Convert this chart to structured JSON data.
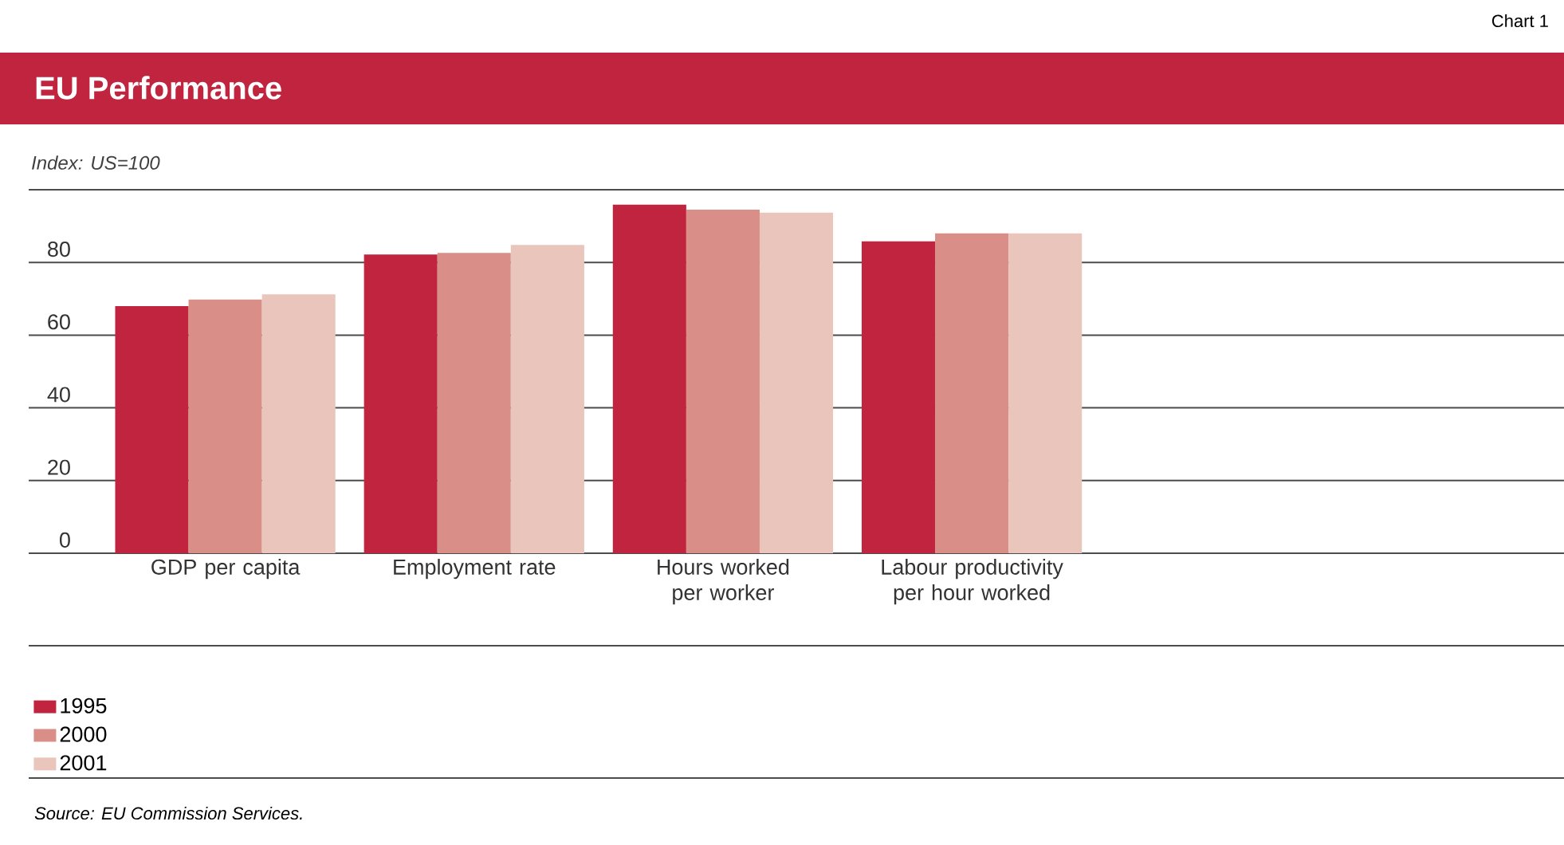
{
  "chart_data": {
    "type": "bar",
    "title": "EU Performance",
    "ylabel": "Index: US=100",
    "annotations": [
      "Chart 1",
      "Source: EU Commission Services."
    ],
    "categories": [
      "GDP per capita",
      "Employment rate",
      "Hours worked per worker",
      "Labour productivity per hour worked"
    ],
    "series": [
      {
        "name": "1995",
        "color": "#c0243f",
        "values": [
          68,
          82.2,
          95.9,
          85.8
        ]
      },
      {
        "name": "2000",
        "color": "#d98e87",
        "values": [
          69.8,
          82.6,
          94.5,
          88
        ]
      },
      {
        "name": "2001",
        "color": "#eac5bc",
        "values": [
          71.2,
          84.8,
          93.7,
          88
        ]
      }
    ],
    "ylim": [
      0,
      100
    ],
    "yticks": [
      0,
      20,
      40,
      60,
      80,
      {
        "value": 100,
        "label": null
      }
    ],
    "grid": "y",
    "legend": "bottom"
  }
}
